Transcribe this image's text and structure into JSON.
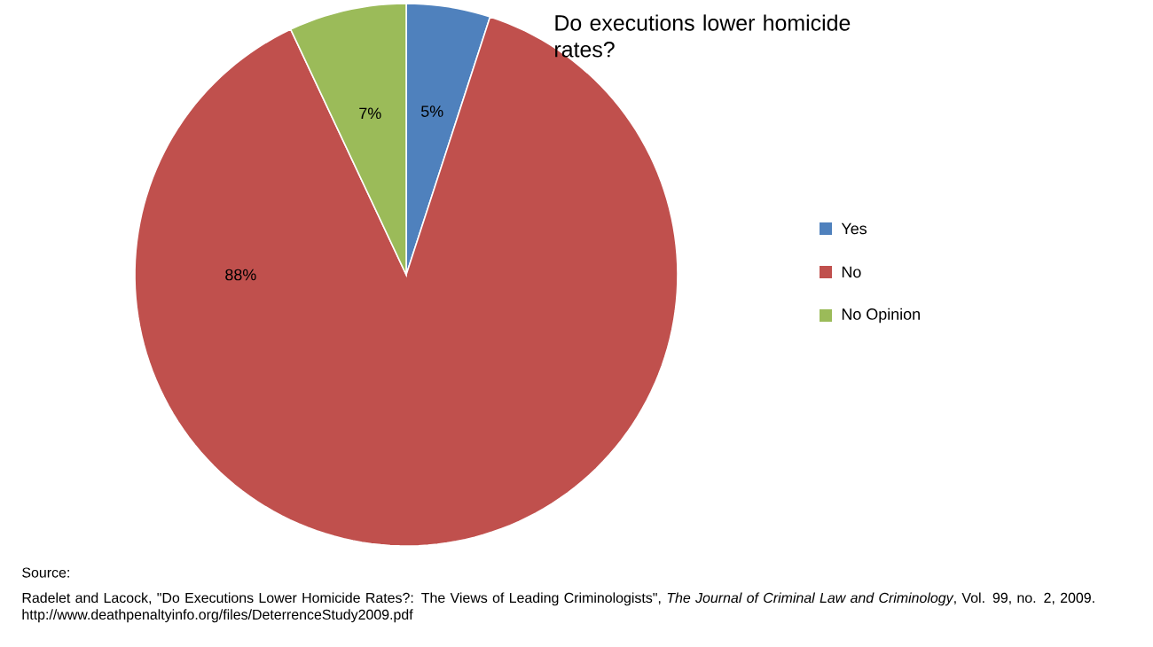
{
  "chart_data": {
    "type": "pie",
    "title": "Do executions lower homicide rates?",
    "categories": [
      "Yes",
      "No",
      "No Opinion"
    ],
    "values": [
      5,
      88,
      7
    ],
    "value_labels": [
      "5%",
      "88%",
      "7%"
    ],
    "colors": [
      "#4f81bd",
      "#c0504d",
      "#9bbb59"
    ],
    "legend": "right",
    "annotations": [
      "Source:",
      "Radelet and Lacock, \"Do Executions Lower Homicide Rates?: The Views of Leading Criminologists\", *The Journal of Criminal Law and Criminology*, Vol. 99, no. 2, 2009.  http://www.deathpenaltyinfo.org/files/DeterrenceStudy2009.pdf"
    ]
  }
}
